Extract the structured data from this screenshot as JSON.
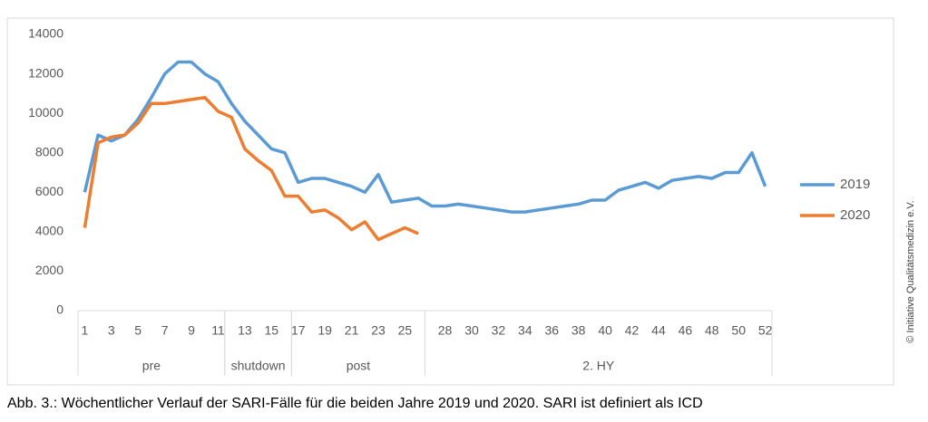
{
  "chart_data": {
    "type": "line",
    "x": [
      1,
      2,
      3,
      4,
      5,
      6,
      7,
      8,
      9,
      10,
      11,
      12,
      13,
      14,
      15,
      16,
      17,
      18,
      19,
      20,
      21,
      22,
      23,
      24,
      25,
      26,
      27,
      28,
      29,
      30,
      31,
      32,
      33,
      34,
      35,
      36,
      37,
      38,
      39,
      40,
      41,
      42,
      43,
      44,
      45,
      46,
      47,
      48,
      49,
      50,
      51,
      52
    ],
    "xlim": [
      0.5,
      52.5
    ],
    "xticks": [
      1,
      3,
      5,
      7,
      9,
      11,
      13,
      15,
      17,
      19,
      21,
      23,
      25,
      28,
      30,
      32,
      34,
      36,
      38,
      40,
      42,
      44,
      46,
      48,
      50,
      52
    ],
    "groups": [
      {
        "label": "pre",
        "range": [
          0.5,
          11.5
        ]
      },
      {
        "label": "shutdown",
        "range": [
          11.5,
          16.5
        ]
      },
      {
        "label": "post",
        "range": [
          16.5,
          26.5
        ]
      },
      {
        "label": "2. HY",
        "range": [
          26.5,
          52.5
        ]
      }
    ],
    "ylim": [
      0,
      14000
    ],
    "yticks": [
      0,
      2000,
      4000,
      6000,
      8000,
      10000,
      12000,
      14000
    ],
    "grid": false,
    "legend": "right",
    "series": [
      {
        "name": "2019",
        "color": "#5b9bd5",
        "values": [
          6000,
          8900,
          8600,
          8900,
          9700,
          10800,
          12000,
          12600,
          12600,
          12000,
          11600,
          10500,
          9600,
          8900,
          8200,
          8000,
          6500,
          6700,
          6700,
          6500,
          6300,
          6000,
          6900,
          5500,
          5600,
          5700,
          5300,
          5300,
          5400,
          5300,
          5200,
          5100,
          5000,
          5000,
          5100,
          5200,
          5300,
          5400,
          5600,
          5600,
          6100,
          6300,
          6500,
          6200,
          6600,
          6700,
          6800,
          6700,
          7000,
          7000,
          8000,
          6300
        ]
      },
      {
        "name": "2020",
        "color": "#ed7d31",
        "values": [
          4200,
          8500,
          8800,
          8900,
          9500,
          10500,
          10500,
          10600,
          10700,
          10800,
          10100,
          9800,
          8200,
          7600,
          7100,
          5800,
          5800,
          5000,
          5100,
          4700,
          4100,
          4500,
          3600,
          3900,
          4200,
          3900,
          null,
          null,
          null,
          null,
          null,
          null,
          null,
          null,
          null,
          null,
          null,
          null,
          null,
          null,
          null,
          null,
          null,
          null,
          null,
          null,
          null,
          null,
          null,
          null,
          null,
          null
        ]
      }
    ],
    "watermark": "© Initiative Qualitätsmedizin e.V.",
    "caption": "Abb. 3.: Wöchentlicher Verlauf der SARI-Fälle für die beiden Jahre 2019 und 2020. SARI ist definiert als ICD"
  }
}
